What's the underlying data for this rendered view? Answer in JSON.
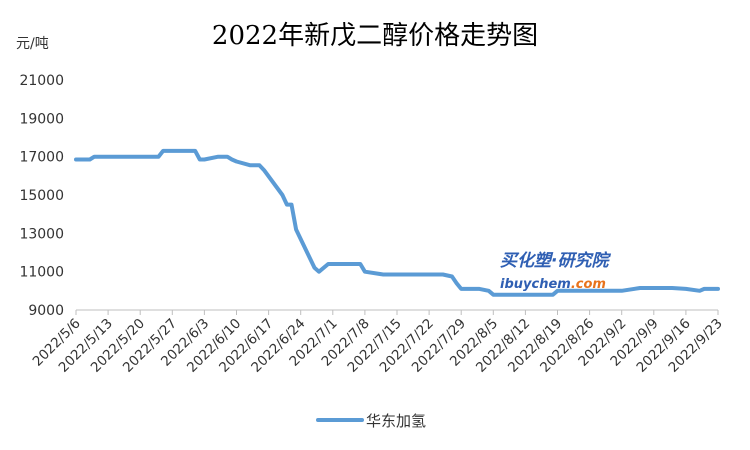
{
  "chart_data": {
    "type": "line",
    "title": "2022年新戊二醇价格走势图",
    "ylabel": "元/吨",
    "xlabel": "",
    "ylim": [
      9000,
      21000
    ],
    "yticks": [
      9000,
      11000,
      13000,
      15000,
      17000,
      19000,
      21000
    ],
    "xlim": [
      "2022/5/6",
      "2022/9/23"
    ],
    "xticks": [
      "2022/5/6",
      "2022/5/13",
      "2022/5/20",
      "2022/5/27",
      "2022/6/3",
      "2022/6/10",
      "2022/6/17",
      "2022/6/24",
      "2022/7/1",
      "2022/7/8",
      "2022/7/15",
      "2022/7/22",
      "2022/7/29",
      "2022/8/5",
      "2022/8/12",
      "2022/8/19",
      "2022/8/26",
      "2022/9/2",
      "2022/9/9",
      "2022/9/16",
      "2022/9/23"
    ],
    "grid": false,
    "legend": "bottom",
    "colors": {
      "series": "#5b9bd5"
    },
    "watermark": {
      "line1": "买化塑·研究院",
      "line2a": "ibuychem",
      "line2b": ".com"
    },
    "series": [
      {
        "name": "华东加氢",
        "points": [
          [
            "2022/5/6",
            16850
          ],
          [
            "2022/5/9",
            16850
          ],
          [
            "2022/5/10",
            17000
          ],
          [
            "2022/5/24",
            17000
          ],
          [
            "2022/5/25",
            17300
          ],
          [
            "2022/6/1",
            17300
          ],
          [
            "2022/6/2",
            16850
          ],
          [
            "2022/6/3",
            16850
          ],
          [
            "2022/6/6",
            17000
          ],
          [
            "2022/6/8",
            17000
          ],
          [
            "2022/6/9",
            16850
          ],
          [
            "2022/6/10",
            16750
          ],
          [
            "2022/6/13",
            16550
          ],
          [
            "2022/6/15",
            16550
          ],
          [
            "2022/6/16",
            16300
          ],
          [
            "2022/6/20",
            15000
          ],
          [
            "2022/6/21",
            14500
          ],
          [
            "2022/6/22",
            14500
          ],
          [
            "2022/6/23",
            13200
          ],
          [
            "2022/6/27",
            11200
          ],
          [
            "2022/6/28",
            11000
          ],
          [
            "2022/6/30",
            11400
          ],
          [
            "2022/7/7",
            11400
          ],
          [
            "2022/7/8",
            11000
          ],
          [
            "2022/7/12",
            10850
          ],
          [
            "2022/7/25",
            10850
          ],
          [
            "2022/7/27",
            10750
          ],
          [
            "2022/7/28",
            10400
          ],
          [
            "2022/7/29",
            10100
          ],
          [
            "2022/8/2",
            10100
          ],
          [
            "2022/8/4",
            10000
          ],
          [
            "2022/8/5",
            9800
          ],
          [
            "2022/8/12",
            9800
          ],
          [
            "2022/8/18",
            9800
          ],
          [
            "2022/8/19",
            10000
          ],
          [
            "2022/9/2",
            10000
          ],
          [
            "2022/9/6",
            10150
          ],
          [
            "2022/9/13",
            10150
          ],
          [
            "2022/9/16",
            10100
          ],
          [
            "2022/9/19",
            10000
          ],
          [
            "2022/9/20",
            10100
          ],
          [
            "2022/9/23",
            10100
          ]
        ]
      }
    ]
  }
}
